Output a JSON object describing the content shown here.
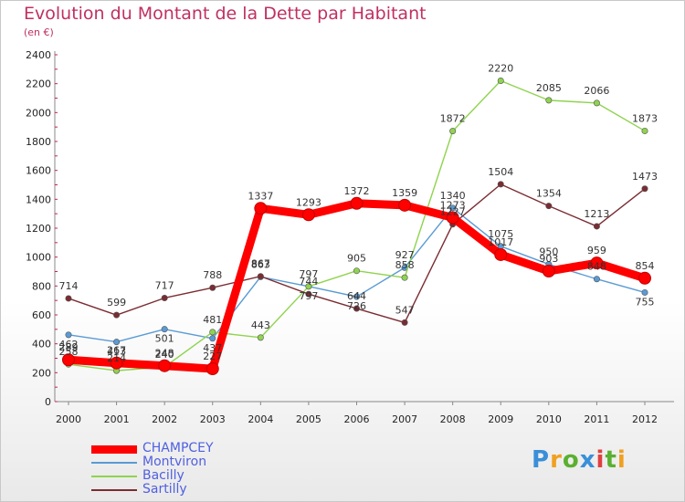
{
  "title": "Evolution du Montant de la Dette par Habitant",
  "subtitle": "(en €)",
  "logo_text": "Proxiti",
  "chart_data": {
    "type": "line",
    "title": "Evolution du Montant de la Dette par Habitant",
    "subtitle": "(en €)",
    "x": [
      2000,
      2001,
      2002,
      2003,
      2004,
      2005,
      2006,
      2007,
      2008,
      2009,
      2010,
      2011,
      2012
    ],
    "ylim": [
      0,
      2400
    ],
    "yticks": [
      0,
      200,
      400,
      600,
      800,
      1000,
      1200,
      1400,
      1600,
      1800,
      2000,
      2200,
      2400
    ],
    "grid": false,
    "legend": "bottom-left",
    "series": [
      {
        "name": "CHAMPCEY",
        "color": "#ff0000",
        "values": [
          289,
          267,
          248,
          227,
          1337,
          1293,
          1372,
          1359,
          1273,
          1017,
          903,
          959,
          854
        ]
      },
      {
        "name": "Montviron",
        "color": "#5a9bd5",
        "values": [
          462,
          413,
          501,
          437,
          863,
          797,
          726,
          927,
          1340,
          1075,
          950,
          848,
          755
        ]
      },
      {
        "name": "Bacilly",
        "color": "#8fd34f",
        "values": [
          258,
          214,
          240,
          481,
          443,
          797,
          905,
          858,
          1872,
          2220,
          2085,
          2066,
          1873
        ]
      },
      {
        "name": "Sartilly",
        "color": "#7b2c32",
        "values": [
          714,
          599,
          717,
          788,
          867,
          744,
          644,
          547,
          1227,
          1504,
          1354,
          1213,
          1473
        ]
      }
    ]
  }
}
